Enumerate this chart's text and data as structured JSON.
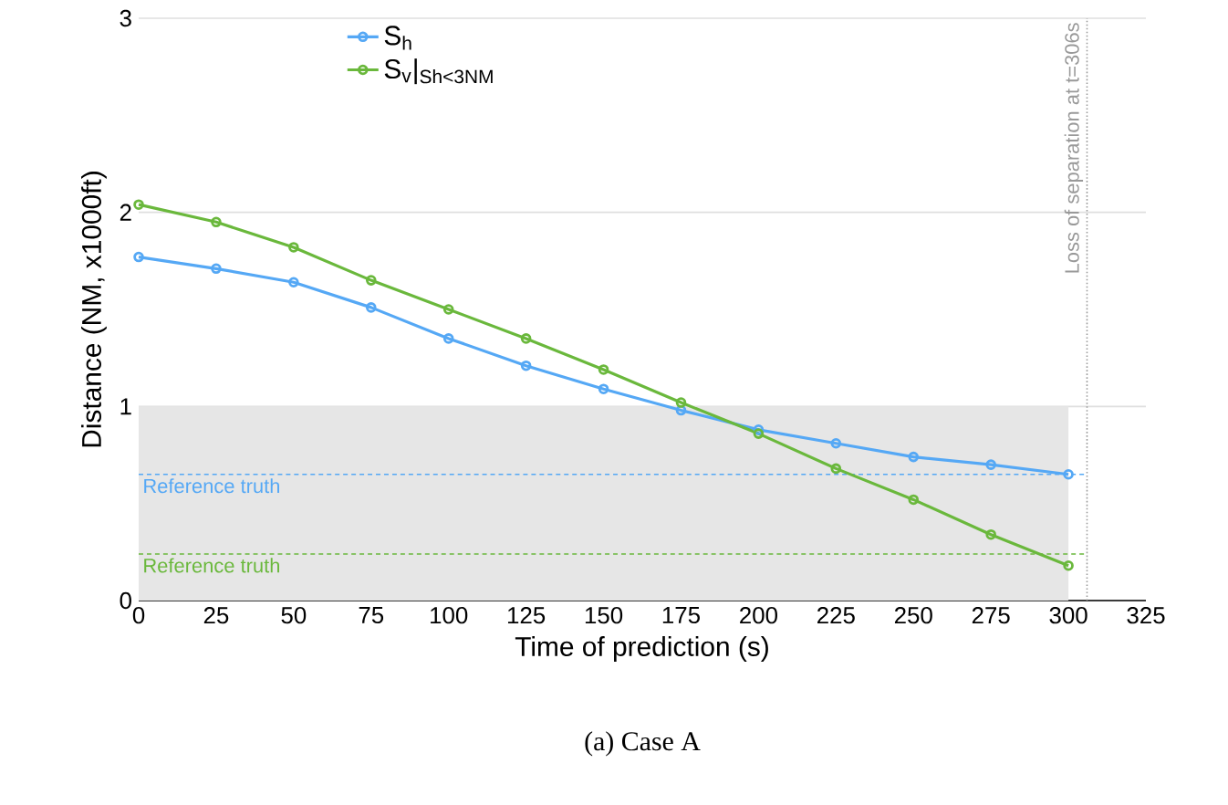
{
  "chart_data": {
    "type": "line",
    "xlabel": "Time of prediction (s)",
    "ylabel": "Distance (NM, x1000ft)",
    "x": [
      0,
      25,
      50,
      75,
      100,
      125,
      150,
      175,
      200,
      225,
      250,
      275,
      300
    ],
    "series": [
      {
        "name": "S$_{h}$",
        "color": "#55a8f5",
        "values": [
          1.77,
          1.71,
          1.64,
          1.51,
          1.35,
          1.21,
          1.09,
          0.98,
          0.88,
          0.81,
          0.74,
          0.7,
          0.65
        ]
      },
      {
        "name": "S$_{v}$|$_{Sh<3NM}$",
        "color": "#6ab83c",
        "values": [
          2.04,
          1.95,
          1.82,
          1.65,
          1.5,
          1.35,
          1.19,
          1.02,
          0.86,
          0.68,
          0.52,
          0.34,
          0.18
        ]
      }
    ],
    "xlim": [
      0,
      325
    ],
    "xticks": [
      0,
      25,
      50,
      75,
      100,
      125,
      150,
      175,
      200,
      225,
      250,
      275,
      300,
      325
    ],
    "ylim": [
      0,
      3
    ],
    "yticks": [
      0,
      1,
      2,
      3
    ],
    "grid": "y",
    "legend": "top left",
    "marker": "circle",
    "line_style": "solid",
    "bands": [
      {
        "axis": "y",
        "from": 0,
        "to": 1,
        "color": "#e6e6e6"
      }
    ],
    "ref_lines": [
      {
        "axis": "y",
        "value": 0.65,
        "label": "Reference truth",
        "color": "#55a8f5",
        "line_style": "dashed"
      },
      {
        "axis": "y",
        "value": 0.24,
        "label": "Reference truth",
        "color": "#6ab83c",
        "line_style": "dashed"
      },
      {
        "axis": "x",
        "value": 306,
        "label": "Loss of separation at t=306s",
        "color": "#999999",
        "line_style": "dotted"
      }
    ],
    "annotations": [
      "(a) Case A"
    ]
  }
}
